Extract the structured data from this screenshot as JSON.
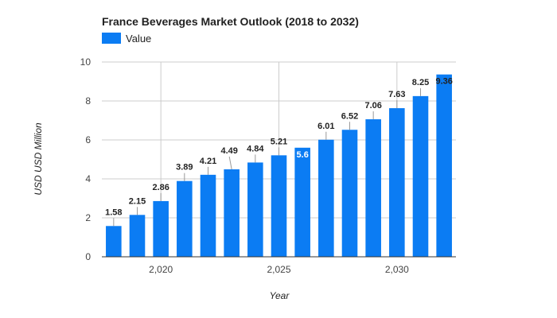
{
  "chart_data": {
    "type": "bar",
    "title": "France Beverages Market Outlook (2018 to 2032)",
    "xlabel": "Year",
    "ylabel": "USD USD Million",
    "x": [
      2018,
      2019,
      2020,
      2021,
      2022,
      2023,
      2024,
      2025,
      2026,
      2027,
      2028,
      2029,
      2030,
      2031,
      2032
    ],
    "series": [
      {
        "name": "Value",
        "color": "#0b7cf3",
        "values": [
          1.58,
          2.15,
          2.86,
          3.89,
          4.21,
          4.49,
          4.84,
          5.21,
          5.6,
          6.01,
          6.52,
          7.06,
          7.63,
          8.25,
          9.36
        ]
      }
    ],
    "data_labels": [
      "1.58",
      "2.15",
      "2.86",
      "3.89",
      "4.21",
      "",
      "4.84",
      "5.21",
      "5.6",
      "6.01",
      "6.52",
      "7.06",
      "7.63",
      "8.25",
      "9.36"
    ],
    "x_ticks": [
      {
        "value": 2020,
        "label": "2,020"
      },
      {
        "value": 2025,
        "label": "2,025"
      },
      {
        "value": 2030,
        "label": "2,030"
      }
    ],
    "y_ticks": [
      0,
      2,
      4,
      6,
      8,
      10
    ],
    "ylim": [
      0,
      10
    ],
    "xlim": [
      2017.5,
      2032.5
    ],
    "grid": true,
    "legend_position": "top-left"
  },
  "extra_labels": [
    "4.49"
  ]
}
